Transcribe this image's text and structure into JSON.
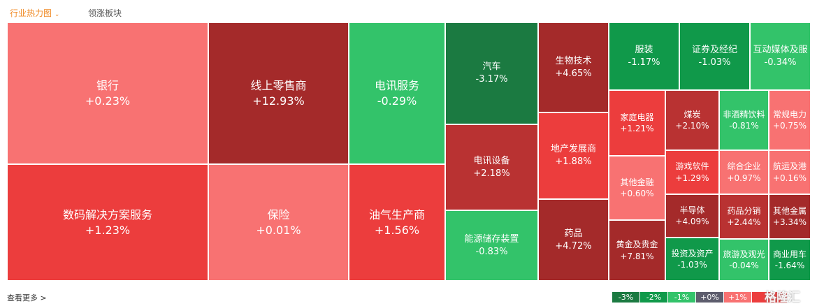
{
  "header": {
    "tabs": [
      "行业热力图",
      "领涨板块"
    ]
  },
  "tiles": [
    {
      "name": "银行",
      "change": "+0.23%"
    },
    {
      "name": "数码解决方案服务",
      "change": "+1.23%"
    },
    {
      "name": "线上零售商",
      "change": "+12.93%"
    },
    {
      "name": "保险",
      "change": "+0.01%"
    },
    {
      "name": "电讯服务",
      "change": "-0.29%"
    },
    {
      "name": "油气生产商",
      "change": "+1.56%"
    },
    {
      "name": "汽车",
      "change": "-3.17%"
    },
    {
      "name": "电讯设备",
      "change": "+2.18%"
    },
    {
      "name": "能源储存装置",
      "change": "-0.83%"
    },
    {
      "name": "生物技术",
      "change": "+4.65%"
    },
    {
      "name": "地产发展商",
      "change": "+1.88%"
    },
    {
      "name": "药品",
      "change": "+4.72%"
    },
    {
      "name": "服装",
      "change": "-1.17%"
    },
    {
      "name": "证券及经纪",
      "change": "-1.03%"
    },
    {
      "name": "互动媒体及服",
      "change": "-0.34%"
    },
    {
      "name": "家庭电器",
      "change": "+1.21%"
    },
    {
      "name": "其他金融",
      "change": "+0.60%"
    },
    {
      "name": "黄金及贵金",
      "change": "+7.81%"
    },
    {
      "name": "煤炭",
      "change": "+2.10%"
    },
    {
      "name": "游戏软件",
      "change": "+1.29%"
    },
    {
      "name": "半导体",
      "change": "+4.09%"
    },
    {
      "name": "投资及资产",
      "change": "-1.03%"
    },
    {
      "name": "非酒精饮料",
      "change": "-0.81%"
    },
    {
      "name": "常规电力",
      "change": "+0.75%"
    },
    {
      "name": "综合企业",
      "change": "+0.97%"
    },
    {
      "name": "航运及港",
      "change": "+0.16%"
    },
    {
      "name": "药品分销",
      "change": "+2.44%"
    },
    {
      "name": "其他金属",
      "change": "+3.34%"
    },
    {
      "name": "旅游及观光",
      "change": "-0.04%"
    },
    {
      "name": "商业用车",
      "change": "-1.64%"
    }
  ],
  "footer": {
    "more": "查看更多 >",
    "legend": [
      "-3%",
      "-2%",
      "-1%",
      "+0%",
      "+1%"
    ],
    "watermark": "格隆汇"
  }
}
